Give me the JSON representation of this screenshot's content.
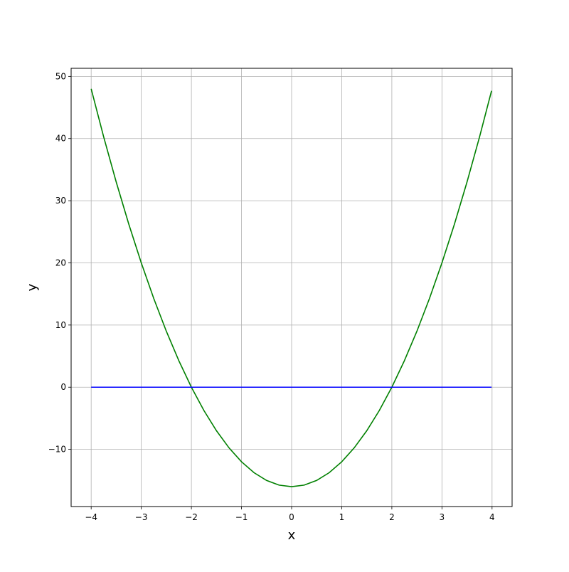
{
  "chart_data": {
    "type": "line",
    "title": "",
    "xlabel": "x",
    "ylabel": "y",
    "xlim": [
      -4.4,
      4.4
    ],
    "ylim": [
      -19.2,
      51.3
    ],
    "grid": true,
    "xticks": [
      -4,
      -3,
      -2,
      -1,
      0,
      1,
      2,
      3,
      4
    ],
    "xtick_labels": [
      "−4",
      "−3",
      "−2",
      "−1",
      "0",
      "1",
      "2",
      "3",
      "4"
    ],
    "yticks": [
      -10,
      0,
      10,
      20,
      30,
      40,
      50
    ],
    "ytick_labels": [
      "−10",
      "0",
      "10",
      "20",
      "30",
      "40",
      "50"
    ],
    "series": [
      {
        "color": "#008000",
        "x": [
          -4,
          -3.75,
          -3.5,
          -3.25,
          -3,
          -2.75,
          -2.5,
          -2.25,
          -2,
          -1.75,
          -1.5,
          -1.25,
          -1,
          -0.75,
          -0.5,
          -0.25,
          0,
          0.25,
          0.5,
          0.75,
          1,
          1.25,
          1.5,
          1.75,
          2,
          2.25,
          2.5,
          2.75,
          3,
          3.25,
          3.5,
          3.75,
          3.99
        ],
        "y": [
          48,
          40.25,
          33,
          26.25,
          20,
          14.25,
          9,
          4.25,
          0,
          -3.75,
          -7,
          -9.75,
          -12,
          -13.75,
          -15,
          -15.75,
          -16,
          -15.75,
          -15,
          -13.75,
          -12,
          -9.75,
          -7,
          -3.75,
          0,
          4.25,
          9,
          14.25,
          20,
          26.25,
          33,
          40.25,
          47.68
        ]
      },
      {
        "color": "#0000ff",
        "x": [
          -4,
          3.99
        ],
        "y": [
          0,
          0
        ]
      }
    ]
  }
}
